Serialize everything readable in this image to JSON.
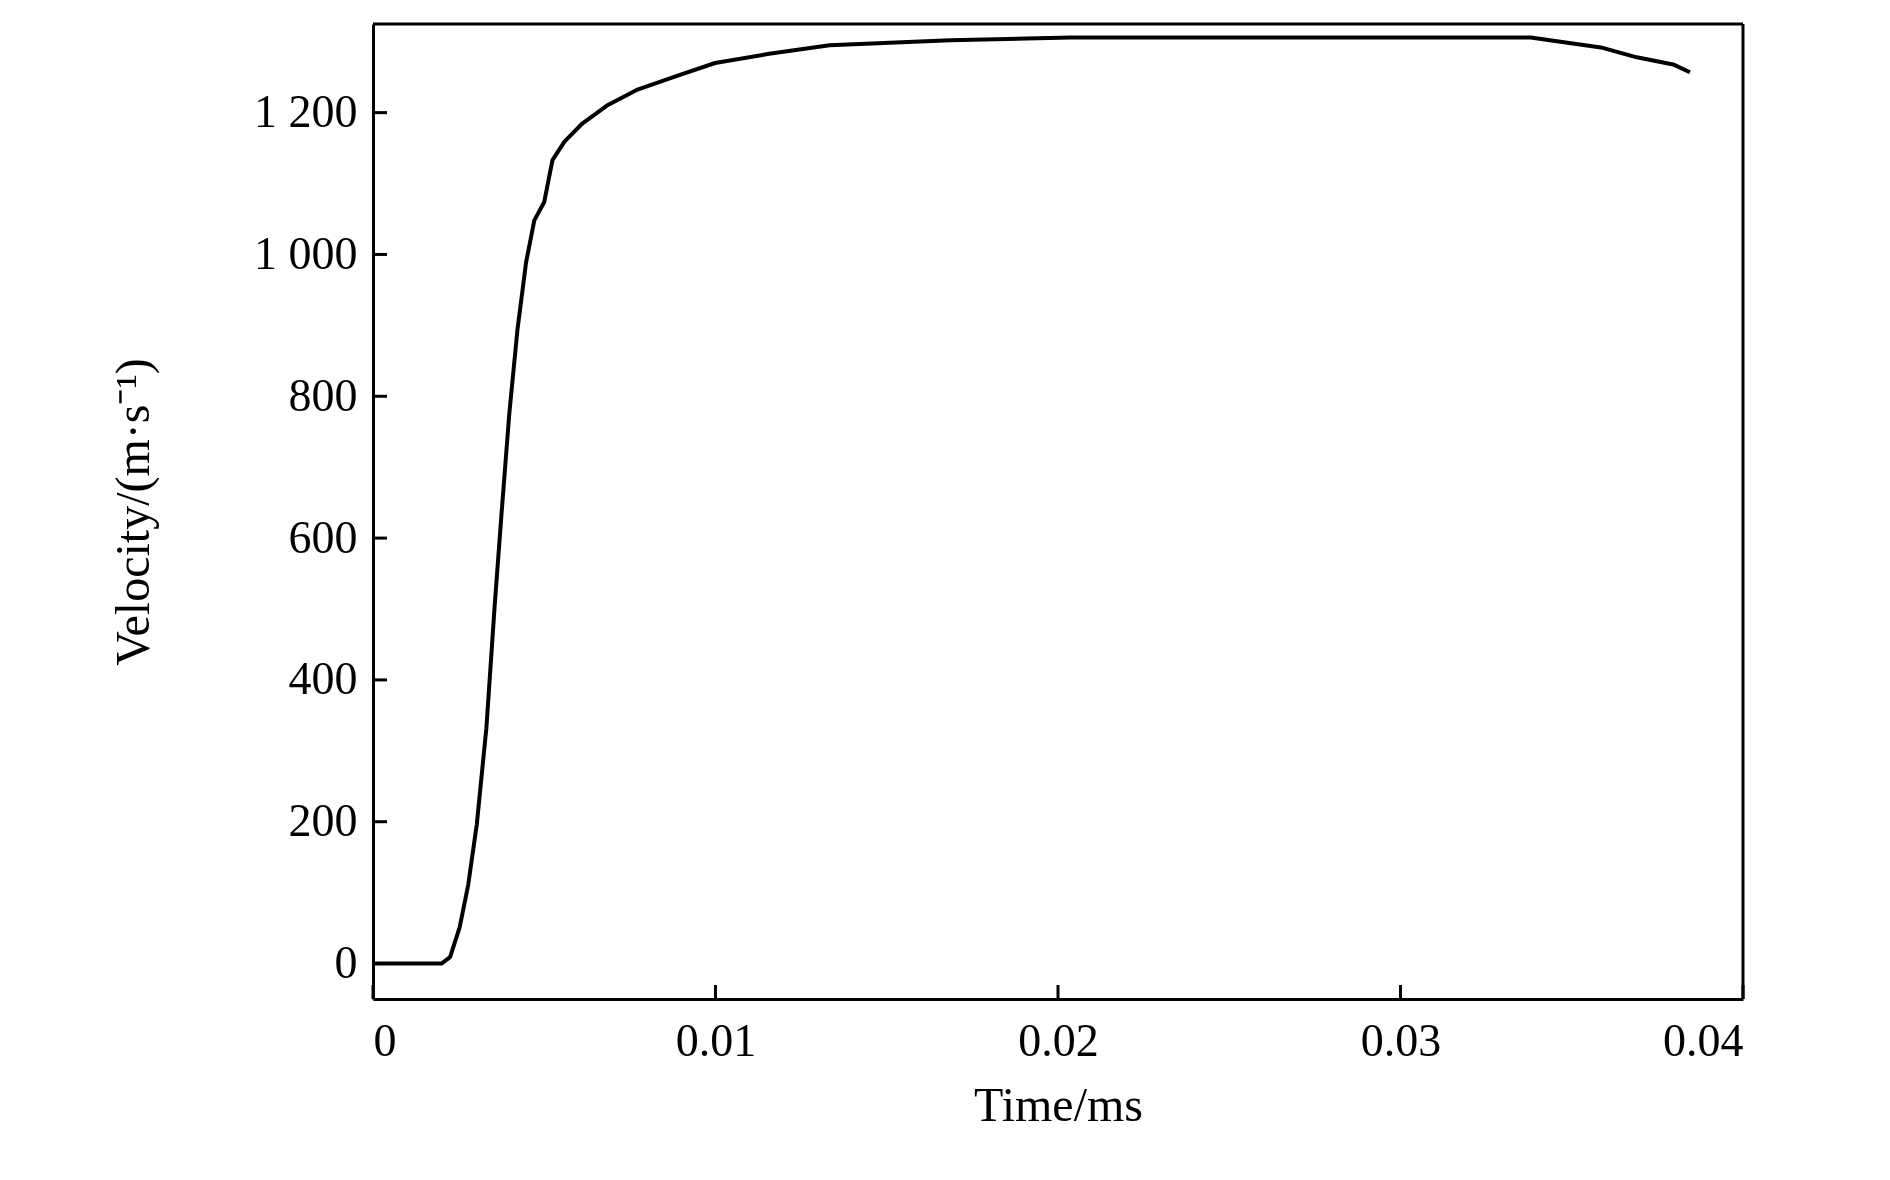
{
  "chart_data": {
    "type": "line",
    "xlabel": "Time/ms",
    "ylabel": "Velocity/(m·s⁻¹)",
    "x": [
      0,
      0.002,
      0.00225,
      0.00253,
      0.00278,
      0.00303,
      0.00331,
      0.00355,
      0.00376,
      0.00398,
      0.00422,
      0.00447,
      0.00471,
      0.005,
      0.00524,
      0.00559,
      0.00612,
      0.00683,
      0.0077,
      0.00894,
      0.00999,
      0.01157,
      0.01333,
      0.01685,
      0.02037,
      0.0239,
      0.0299,
      0.0338,
      0.03585,
      0.0369,
      0.03796,
      0.03845
    ],
    "series": [
      {
        "color": "#000000",
        "values": [
          0,
          0,
          9,
          51,
          111,
          196,
          332,
          503,
          639,
          776,
          895,
          989,
          1048,
          1074,
          1133,
          1159,
          1185,
          1210,
          1232,
          1253,
          1270,
          1283,
          1295,
          1302,
          1306,
          1306,
          1306,
          1306,
          1292,
          1278,
          1268,
          1257
        ]
      }
    ],
    "xlim": [
      0,
      0.04
    ],
    "ylim": [
      -50,
      1325
    ],
    "xticks": [
      0,
      0.01,
      0.02,
      0.03,
      0.04
    ],
    "yticks": [
      0,
      200,
      400,
      600,
      800,
      {
        "value": 1000,
        "label": "1 000"
      },
      {
        "value": 1200,
        "label": "1 200"
      }
    ],
    "grid": false,
    "marker": "none",
    "line_style": "solid"
  }
}
